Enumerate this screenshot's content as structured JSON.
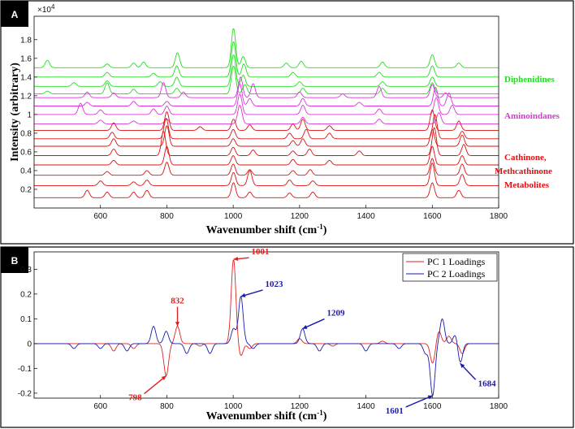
{
  "chart_data": [
    {
      "panel": "A",
      "type": "line",
      "xlabel": "Wavenumber shift (cm",
      "xlabel_sup": "-1",
      "xlabel_close": ")",
      "ylabel": "Intensity (arbitrary)",
      "y_multiplier": "×10",
      "y_multiplier_exp": "4",
      "xlim": [
        400,
        1800
      ],
      "ylim": [
        0,
        2.05
      ],
      "xticks": [
        600,
        800,
        1000,
        1200,
        1400,
        1600,
        1800
      ],
      "yticks": [
        0.2,
        0.4,
        0.6,
        0.8,
        1,
        1.2,
        1.4,
        1.6,
        1.8
      ],
      "grid": false,
      "groups": [
        {
          "name": "Diphenidines",
          "color": "#22dd22",
          "count": 4,
          "baselines": [
            1.5,
            1.4,
            1.3,
            1.22
          ]
        },
        {
          "name": "Aminoindanes",
          "color": "#dd33dd",
          "count": 4,
          "baselines": [
            1.18,
            1.09,
            1.0,
            0.9
          ]
        },
        {
          "name": "Cathinone,",
          "name_line2": "Methcathinone",
          "name_line3": "Metabolites",
          "color": "#dd1111",
          "count": 8,
          "baselines": [
            0.83,
            0.74,
            0.66,
            0.56,
            0.46,
            0.35,
            0.24,
            0.11
          ]
        }
      ],
      "series": [
        {
          "group": 0,
          "peaks": [
            [
              440,
              0.08
            ],
            [
              620,
              0.04
            ],
            [
              700,
              0.05
            ],
            [
              730,
              0.06
            ],
            [
              832,
              0.16
            ],
            [
              1001,
              0.42
            ],
            [
              1030,
              0.12
            ],
            [
              1160,
              0.05
            ],
            [
              1205,
              0.07
            ],
            [
              1450,
              0.06
            ],
            [
              1600,
              0.14
            ],
            [
              1680,
              0.05
            ]
          ]
        },
        {
          "group": 0,
          "peaks": [
            [
              620,
              0.05
            ],
            [
              760,
              0.04
            ],
            [
              830,
              0.12
            ],
            [
              1001,
              0.38
            ],
            [
              1032,
              0.14
            ],
            [
              1180,
              0.05
            ],
            [
              1440,
              0.05
            ],
            [
              1600,
              0.12
            ]
          ]
        },
        {
          "group": 0,
          "peaks": [
            [
              520,
              0.04
            ],
            [
              620,
              0.06
            ],
            [
              780,
              0.05
            ],
            [
              830,
              0.1
            ],
            [
              1001,
              0.34
            ],
            [
              1030,
              0.12
            ],
            [
              1200,
              0.05
            ],
            [
              1450,
              0.05
            ],
            [
              1600,
              0.1
            ]
          ]
        },
        {
          "group": 0,
          "peaks": [
            [
              440,
              0.03
            ],
            [
              620,
              0.12
            ],
            [
              700,
              0.05
            ],
            [
              830,
              0.06
            ],
            [
              1001,
              0.3
            ],
            [
              1035,
              0.1
            ],
            [
              1210,
              0.06
            ],
            [
              1450,
              0.06
            ],
            [
              1600,
              0.12
            ]
          ]
        },
        {
          "group": 1,
          "peaks": [
            [
              560,
              0.06
            ],
            [
              640,
              0.05
            ],
            [
              790,
              0.16
            ],
            [
              850,
              0.06
            ],
            [
              1022,
              0.22
            ],
            [
              1060,
              0.15
            ],
            [
              1200,
              0.06
            ],
            [
              1330,
              0.04
            ],
            [
              1440,
              0.12
            ],
            [
              1600,
              0.14
            ],
            [
              1640,
              0.05
            ]
          ]
        },
        {
          "group": 1,
          "peaks": [
            [
              560,
              0.04
            ],
            [
              700,
              0.05
            ],
            [
              800,
              0.05
            ],
            [
              1020,
              0.24
            ],
            [
              1050,
              0.08
            ],
            [
              1210,
              0.08
            ],
            [
              1380,
              0.04
            ],
            [
              1610,
              0.2
            ],
            [
              1650,
              0.14
            ]
          ]
        },
        {
          "group": 1,
          "peaks": [
            [
              540,
              0.12
            ],
            [
              600,
              0.05
            ],
            [
              760,
              0.06
            ],
            [
              800,
              0.09
            ],
            [
              1020,
              0.22
            ],
            [
              1210,
              0.1
            ],
            [
              1440,
              0.06
            ],
            [
              1612,
              0.18
            ],
            [
              1660,
              0.1
            ]
          ]
        },
        {
          "group": 1,
          "peaks": [
            [
              600,
              0.04
            ],
            [
              700,
              0.03
            ],
            [
              800,
              0.05
            ],
            [
              1020,
              0.2
            ],
            [
              1210,
              0.07
            ],
            [
              1440,
              0.05
            ],
            [
              1620,
              0.12
            ]
          ]
        },
        {
          "group": 2,
          "peaks": [
            [
              640,
              0.08
            ],
            [
              800,
              0.2
            ],
            [
              900,
              0.04
            ],
            [
              1001,
              0.12
            ],
            [
              1050,
              0.06
            ],
            [
              1180,
              0.07
            ],
            [
              1210,
              0.12
            ],
            [
              1290,
              0.05
            ],
            [
              1600,
              0.22
            ],
            [
              1680,
              0.1
            ]
          ]
        },
        {
          "group": 2,
          "peaks": [
            [
              635,
              0.07
            ],
            [
              798,
              0.22
            ],
            [
              1000,
              0.1
            ],
            [
              1170,
              0.06
            ],
            [
              1220,
              0.1
            ],
            [
              1290,
              0.06
            ],
            [
              1608,
              0.26
            ],
            [
              1690,
              0.08
            ]
          ]
        },
        {
          "group": 2,
          "peaks": [
            [
              640,
              0.08
            ],
            [
              800,
              0.22
            ],
            [
              1000,
              0.08
            ],
            [
              1180,
              0.06
            ],
            [
              1210,
              0.08
            ],
            [
              1600,
              0.18
            ],
            [
              1690,
              0.12
            ]
          ]
        },
        {
          "group": 2,
          "peaks": [
            [
              640,
              0.07
            ],
            [
              790,
              0.26
            ],
            [
              1000,
              0.09
            ],
            [
              1060,
              0.06
            ],
            [
              1180,
              0.05
            ],
            [
              1230,
              0.07
            ],
            [
              1380,
              0.05
            ],
            [
              1606,
              0.3
            ],
            [
              1695,
              0.12
            ]
          ]
        },
        {
          "group": 2,
          "peaks": [
            [
              640,
              0.05
            ],
            [
              800,
              0.2
            ],
            [
              1000,
              0.1
            ],
            [
              1180,
              0.06
            ],
            [
              1290,
              0.05
            ],
            [
              1600,
              0.2
            ],
            [
              1690,
              0.1
            ]
          ]
        },
        {
          "group": 2,
          "peaks": [
            [
              620,
              0.04
            ],
            [
              740,
              0.05
            ],
            [
              800,
              0.14
            ],
            [
              1000,
              0.12
            ],
            [
              1050,
              0.06
            ],
            [
              1180,
              0.05
            ],
            [
              1232,
              0.06
            ],
            [
              1600,
              0.18
            ],
            [
              1690,
              0.12
            ]
          ]
        },
        {
          "group": 2,
          "peaks": [
            [
              600,
              0.05
            ],
            [
              700,
              0.04
            ],
            [
              740,
              0.06
            ],
            [
              1001,
              0.14
            ],
            [
              1050,
              0.16
            ],
            [
              1170,
              0.06
            ],
            [
              1240,
              0.05
            ],
            [
              1600,
              0.24
            ],
            [
              1690,
              0.12
            ]
          ]
        },
        {
          "group": 2,
          "peaks": [
            [
              560,
              0.08
            ],
            [
              620,
              0.06
            ],
            [
              700,
              0.06
            ],
            [
              740,
              0.08
            ],
            [
              1001,
              0.16
            ],
            [
              1050,
              0.06
            ],
            [
              1170,
              0.05
            ],
            [
              1240,
              0.06
            ],
            [
              1600,
              0.16
            ],
            [
              1680,
              0.08
            ]
          ]
        }
      ]
    },
    {
      "panel": "B",
      "type": "line",
      "xlabel": "Wavenumber shift (cm",
      "xlabel_sup": "-1",
      "xlabel_close": ")",
      "xlim": [
        400,
        1800
      ],
      "ylim": [
        -0.22,
        0.37
      ],
      "xticks": [
        600,
        800,
        1000,
        1200,
        1400,
        1600,
        1800
      ],
      "yticks": [
        -0.2,
        -0.1,
        0,
        0.1,
        0.2,
        0.3
      ],
      "ytick_labels": [
        "-0.2",
        "-0.1",
        "0",
        "0.1",
        "0.2",
        "0.3"
      ],
      "legend_placement": "top-right",
      "series": [
        {
          "name": "PC 1 Loadings",
          "color": "#dd2222",
          "peaks": [
            [
              640,
              -0.03
            ],
            [
              700,
              -0.02
            ],
            [
              798,
              -0.13
            ],
            [
              832,
              0.07
            ],
            [
              900,
              -0.01
            ],
            [
              1001,
              0.34
            ],
            [
              1023,
              -0.05
            ],
            [
              1050,
              -0.02
            ],
            [
              1200,
              0.02
            ],
            [
              1300,
              -0.01
            ],
            [
              1450,
              0.01
            ],
            [
              1601,
              -0.08
            ],
            [
              1620,
              0.05
            ],
            [
              1650,
              0.03
            ],
            [
              1690,
              -0.04
            ]
          ]
        },
        {
          "name": "PC 2 Loadings",
          "color": "#1a1ab0",
          "peaks": [
            [
              520,
              -0.02
            ],
            [
              600,
              -0.02
            ],
            [
              680,
              -0.03
            ],
            [
              760,
              0.07
            ],
            [
              798,
              0.05
            ],
            [
              860,
              -0.04
            ],
            [
              930,
              -0.04
            ],
            [
              1001,
              0.06
            ],
            [
              1023,
              0.19
            ],
            [
              1060,
              -0.02
            ],
            [
              1209,
              0.06
            ],
            [
              1260,
              -0.03
            ],
            [
              1400,
              -0.03
            ],
            [
              1500,
              -0.02
            ],
            [
              1580,
              -0.04
            ],
            [
              1601,
              -0.21
            ],
            [
              1630,
              0.1
            ],
            [
              1670,
              0.04
            ],
            [
              1684,
              -0.08
            ]
          ]
        }
      ],
      "annotations": [
        {
          "text": "1001",
          "color": "#dd2222",
          "x": 1001,
          "y": 0.34
        },
        {
          "text": "832",
          "color": "#dd2222",
          "x": 832,
          "y": 0.07
        },
        {
          "text": "798",
          "color": "#dd2222",
          "x": 798,
          "y": -0.13
        },
        {
          "text": "1023",
          "color": "#1a1ab0",
          "x": 1023,
          "y": 0.19
        },
        {
          "text": "1209",
          "color": "#1a1ab0",
          "x": 1209,
          "y": 0.06
        },
        {
          "text": "1601",
          "color": "#1a1ab0",
          "x": 1601,
          "y": -0.21
        },
        {
          "text": "1684",
          "color": "#1a1ab0",
          "x": 1684,
          "y": -0.08
        }
      ]
    }
  ]
}
